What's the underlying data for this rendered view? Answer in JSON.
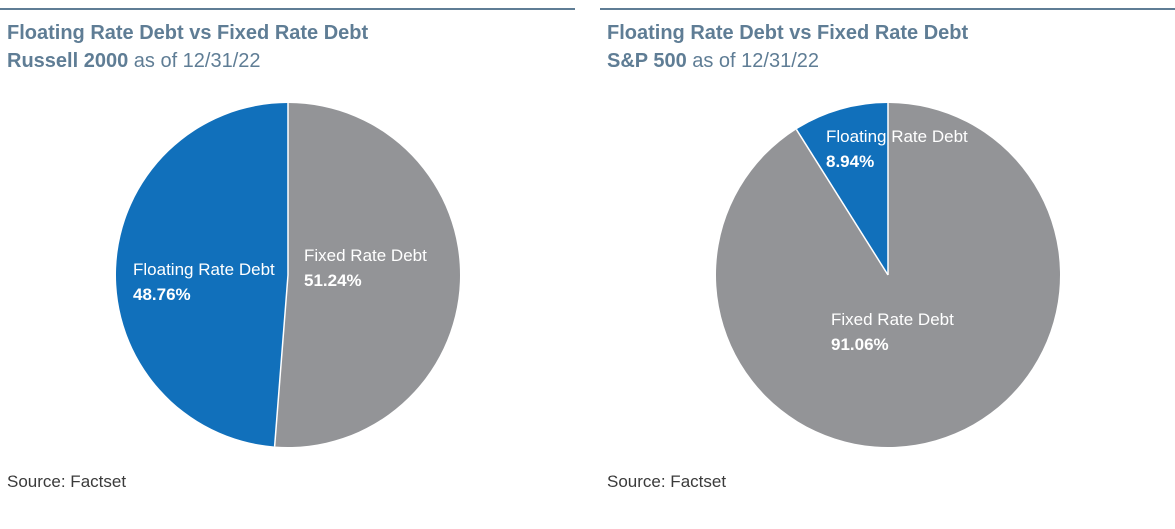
{
  "colors": {
    "floating": "#1170bb",
    "fixed": "#939497",
    "title": "#5f7d95"
  },
  "chart_data": [
    {
      "type": "pie",
      "title": "Floating Rate Debt vs Fixed Rate Debt",
      "subtitle_bold": "Russell 2000",
      "subtitle_rest": " as of 12/31/22",
      "source": "Source: Factset",
      "slices": [
        {
          "label": "Floating Rate Debt",
          "value": 48.76,
          "value_label": "48.76%",
          "color": "#1170bb"
        },
        {
          "label": "Fixed Rate Debt",
          "value": 51.24,
          "value_label": "51.24%",
          "color": "#939497"
        }
      ]
    },
    {
      "type": "pie",
      "title": "Floating Rate Debt vs Fixed Rate Debt",
      "subtitle_bold": "S&P 500",
      "subtitle_rest": " as of 12/31/22",
      "source": "Source: Factset",
      "slices": [
        {
          "label": "Floating Rate Debt",
          "value": 8.94,
          "value_label": "8.94%",
          "color": "#1170bb"
        },
        {
          "label": "Fixed Rate Debt",
          "value": 91.06,
          "value_label": "91.06%",
          "color": "#939497"
        }
      ]
    }
  ]
}
